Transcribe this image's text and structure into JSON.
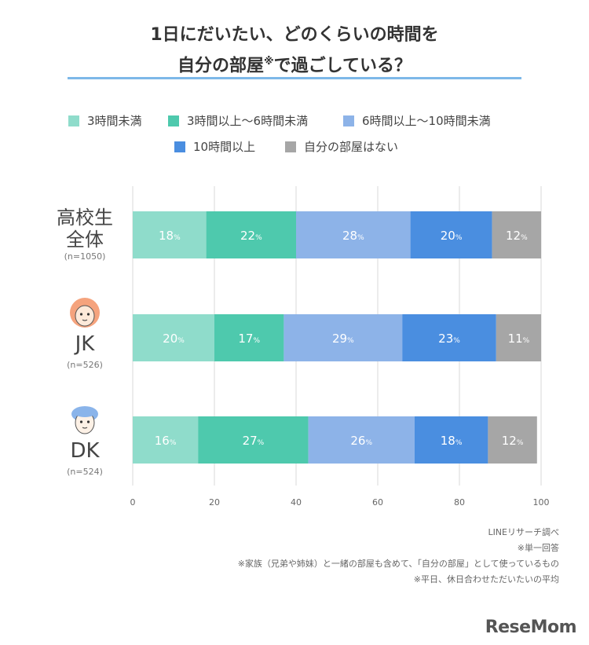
{
  "title": {
    "line1": "1日にだいたい、どのくらいの時間を",
    "line2_main": "自分の部屋",
    "line2_mark": "※",
    "line2_end": "で過ごしている？"
  },
  "legend": [
    {
      "label": "3時間未満",
      "color": "#8fdccb"
    },
    {
      "label": "3時間以上〜6時間未満",
      "color": "#4ec9ad"
    },
    {
      "label": "6時間以上〜10時間未満",
      "color": "#8db3e8"
    },
    {
      "label": "10時間以上",
      "color": "#4a8ee0"
    },
    {
      "label": "自分の部屋はない",
      "color": "#a6a6a6"
    }
  ],
  "chart_data": {
    "type": "bar",
    "orientation": "horizontal-stacked",
    "categories": [
      {
        "name_lines": [
          "高校生",
          "全体"
        ],
        "n": "(n=1050)"
      },
      {
        "name_lines": [
          "JK"
        ],
        "n": "(n=526)"
      },
      {
        "name_lines": [
          "DK"
        ],
        "n": "(n=524)"
      }
    ],
    "series": [
      {
        "name": "3時間未満",
        "values": [
          18,
          20,
          16
        ]
      },
      {
        "name": "3時間以上〜6時間未満",
        "values": [
          22,
          17,
          27
        ]
      },
      {
        "name": "6時間以上〜10時間未満",
        "values": [
          28,
          29,
          26
        ]
      },
      {
        "name": "10時間以上",
        "values": [
          20,
          23,
          18
        ]
      },
      {
        "name": "自分の部屋はない",
        "values": [
          12,
          11,
          12
        ]
      }
    ],
    "value_suffix": "%",
    "xlim": [
      0,
      100
    ],
    "xticks": [
      0,
      20,
      40,
      60,
      80,
      100
    ],
    "grid": true
  },
  "footer": {
    "source": "LINEリサーチ調べ",
    "notes": [
      "※単一回答",
      "※家族（兄弟や姉妹）と一緒の部屋も含めて、「自分の部屋」として使っているもの",
      "※平日、休日合わせただいたいの平均"
    ]
  },
  "brand": "ReseMom"
}
